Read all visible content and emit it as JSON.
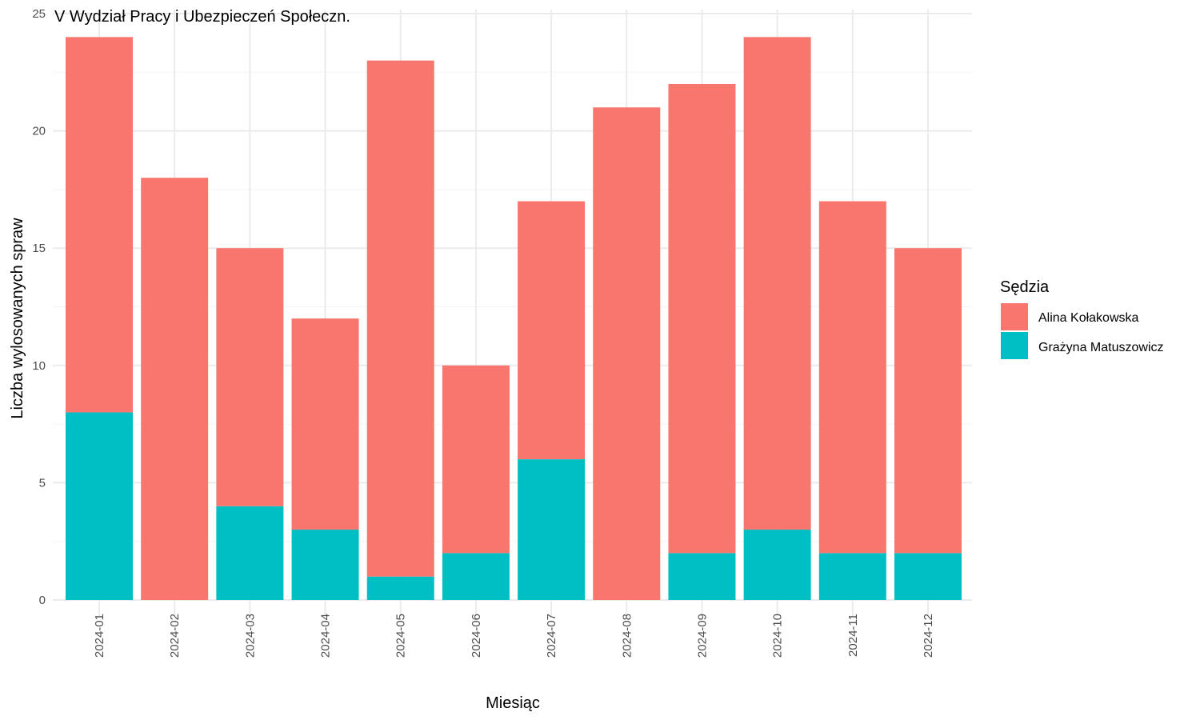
{
  "chart_data": {
    "type": "bar",
    "stacked": true,
    "title": "V Wydział Pracy i Ubezpieczeń Społeczn.",
    "xlabel": "Miesiąc",
    "ylabel": "Liczba wylosowanych spraw",
    "ylim": [
      0,
      25
    ],
    "yticks": [
      0,
      5,
      10,
      15,
      20,
      25
    ],
    "grid": true,
    "categories": [
      "2024-01",
      "2024-02",
      "2024-03",
      "2024-04",
      "2024-05",
      "2024-06",
      "2024-07",
      "2024-08",
      "2024-09",
      "2024-10",
      "2024-11",
      "2024-12"
    ],
    "series": [
      {
        "name": "Alina Kołakowska",
        "color": "#F8766D",
        "values": [
          16,
          18,
          11,
          9,
          22,
          8,
          11,
          21,
          20,
          21,
          15,
          13
        ]
      },
      {
        "name": "Grażyna Matuszowicz",
        "color": "#00BFC4",
        "values": [
          8,
          0,
          4,
          3,
          1,
          2,
          6,
          0,
          2,
          3,
          2,
          2
        ]
      }
    ],
    "legend": {
      "title": "Sędzia",
      "position": "right"
    }
  }
}
